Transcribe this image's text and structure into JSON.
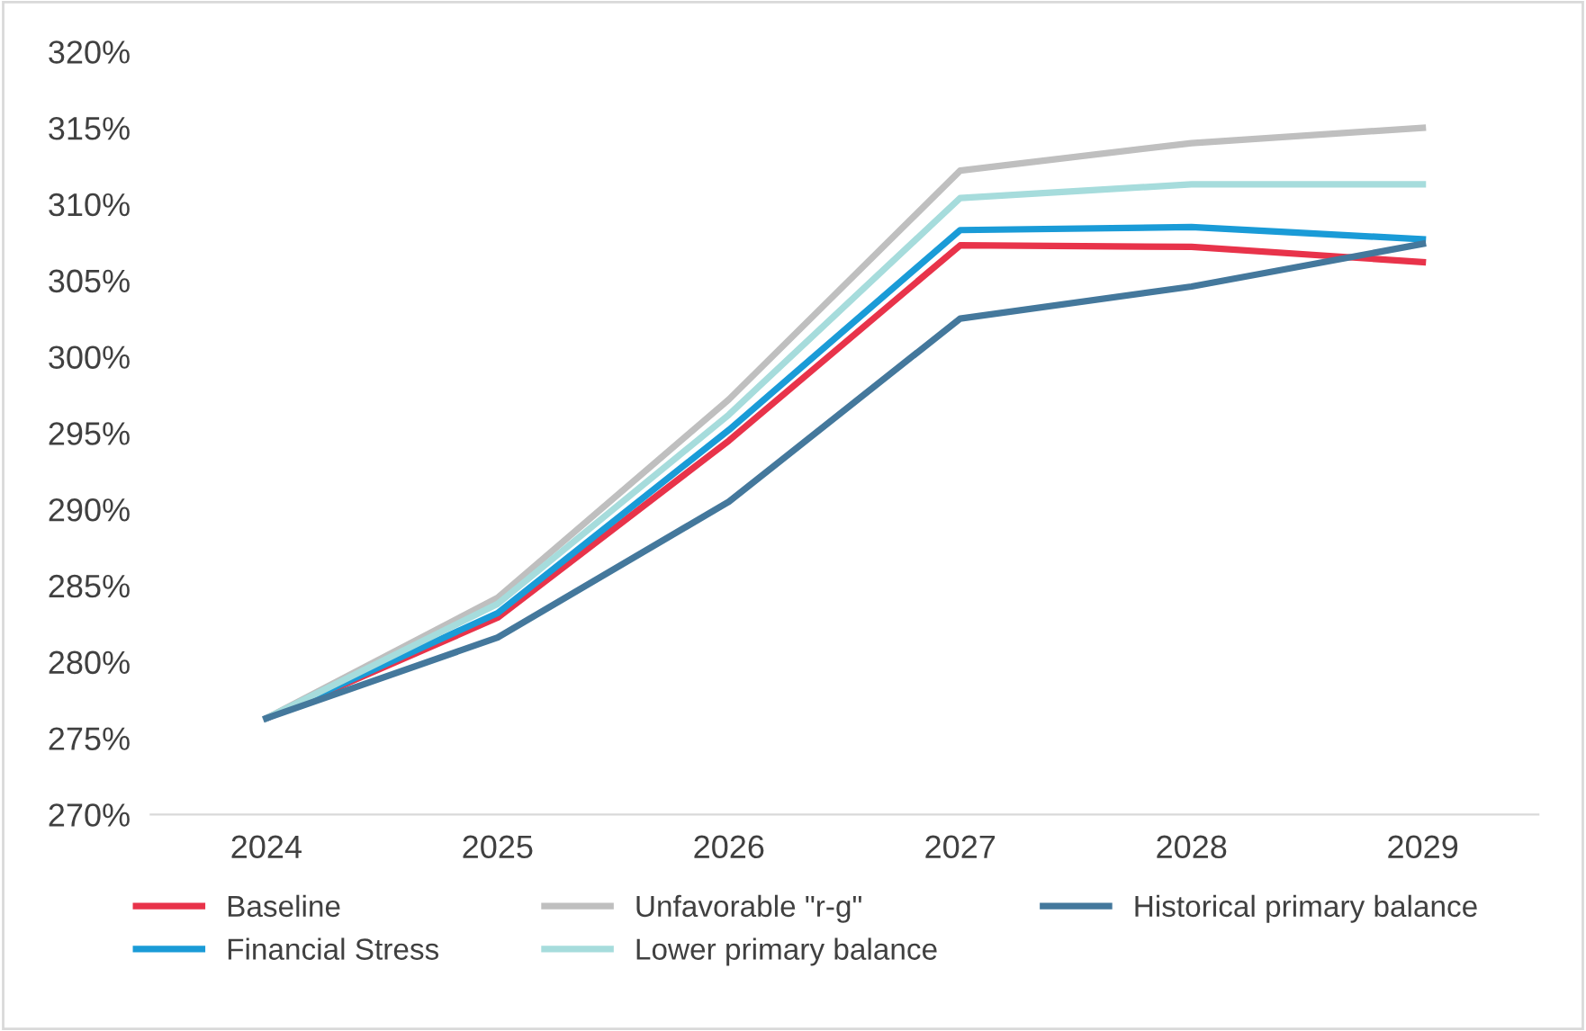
{
  "chart_data": {
    "type": "line",
    "categories": [
      "2024",
      "2025",
      "2026",
      "2027",
      "2028",
      "2029"
    ],
    "series": [
      {
        "name": "Baseline",
        "color": "#e8334a",
        "values": [
          276.3,
          282.9,
          294.5,
          307.3,
          307.2,
          306.2
        ]
      },
      {
        "name": "Financial Stress",
        "color": "#1a9bd7",
        "values": [
          276.3,
          283.2,
          295.2,
          308.3,
          308.5,
          307.7
        ]
      },
      {
        "name": "Unfavorable \"r-g\"",
        "color": "#bfbfbf",
        "values": [
          276.3,
          284.2,
          297.2,
          312.2,
          314.0,
          315.0
        ]
      },
      {
        "name": "Lower primary balance",
        "color": "#a6dcdc",
        "values": [
          276.3,
          283.8,
          296.2,
          310.4,
          311.3,
          311.3
        ]
      },
      {
        "name": "Historical primary balance",
        "color": "#44789c",
        "values": [
          276.3,
          281.6,
          290.5,
          302.5,
          304.6,
          307.4
        ]
      }
    ],
    "ylim": [
      270,
      320
    ],
    "yticks": [
      {
        "value": 270,
        "label": "270%"
      },
      {
        "value": 275,
        "label": "275%"
      },
      {
        "value": 280,
        "label": "280%"
      },
      {
        "value": 285,
        "label": "285%"
      },
      {
        "value": 290,
        "label": "290%"
      },
      {
        "value": 295,
        "label": "295%"
      },
      {
        "value": 300,
        "label": "300%"
      },
      {
        "value": 305,
        "label": "305%"
      },
      {
        "value": 310,
        "label": "310%"
      },
      {
        "value": 315,
        "label": "315%"
      },
      {
        "value": 320,
        "label": "320%"
      }
    ],
    "grid": false,
    "legend": "bottom",
    "marker": "none",
    "line_style": "solid"
  }
}
